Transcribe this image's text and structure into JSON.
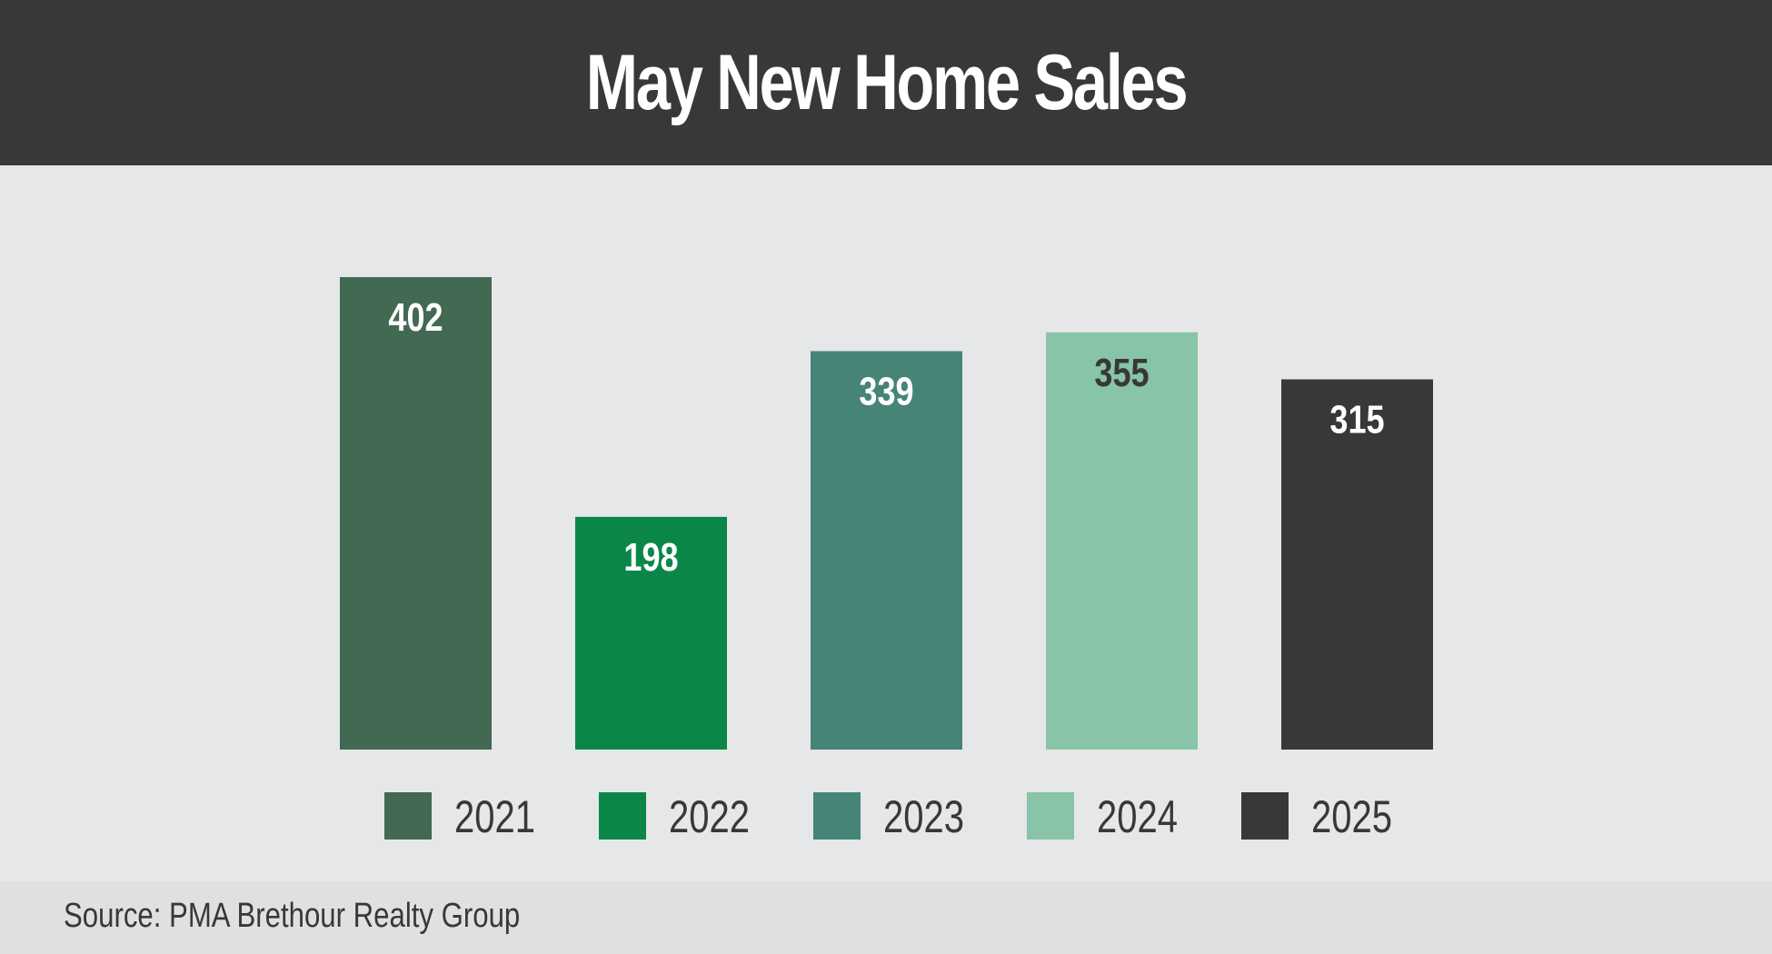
{
  "title": "May New Home Sales",
  "source": "Source: PMA Brethour Realty Group",
  "chart_data": {
    "type": "bar",
    "title": "May New Home Sales",
    "categories": [
      "2021",
      "2022",
      "2023",
      "2024",
      "2025"
    ],
    "values": [
      402,
      198,
      339,
      355,
      315
    ],
    "colors": [
      "#426952",
      "#0a8748",
      "#468478",
      "#88c4a7",
      "#383838"
    ],
    "label_colors": [
      "#ffffff",
      "#ffffff",
      "#ffffff",
      "#383838",
      "#ffffff"
    ],
    "legend": [
      "2021",
      "2022",
      "2023",
      "2024",
      "2025"
    ],
    "legend_position": "bottom",
    "xlabel": "",
    "ylabel": "",
    "ylim": [
      0,
      402
    ],
    "grid": false
  }
}
